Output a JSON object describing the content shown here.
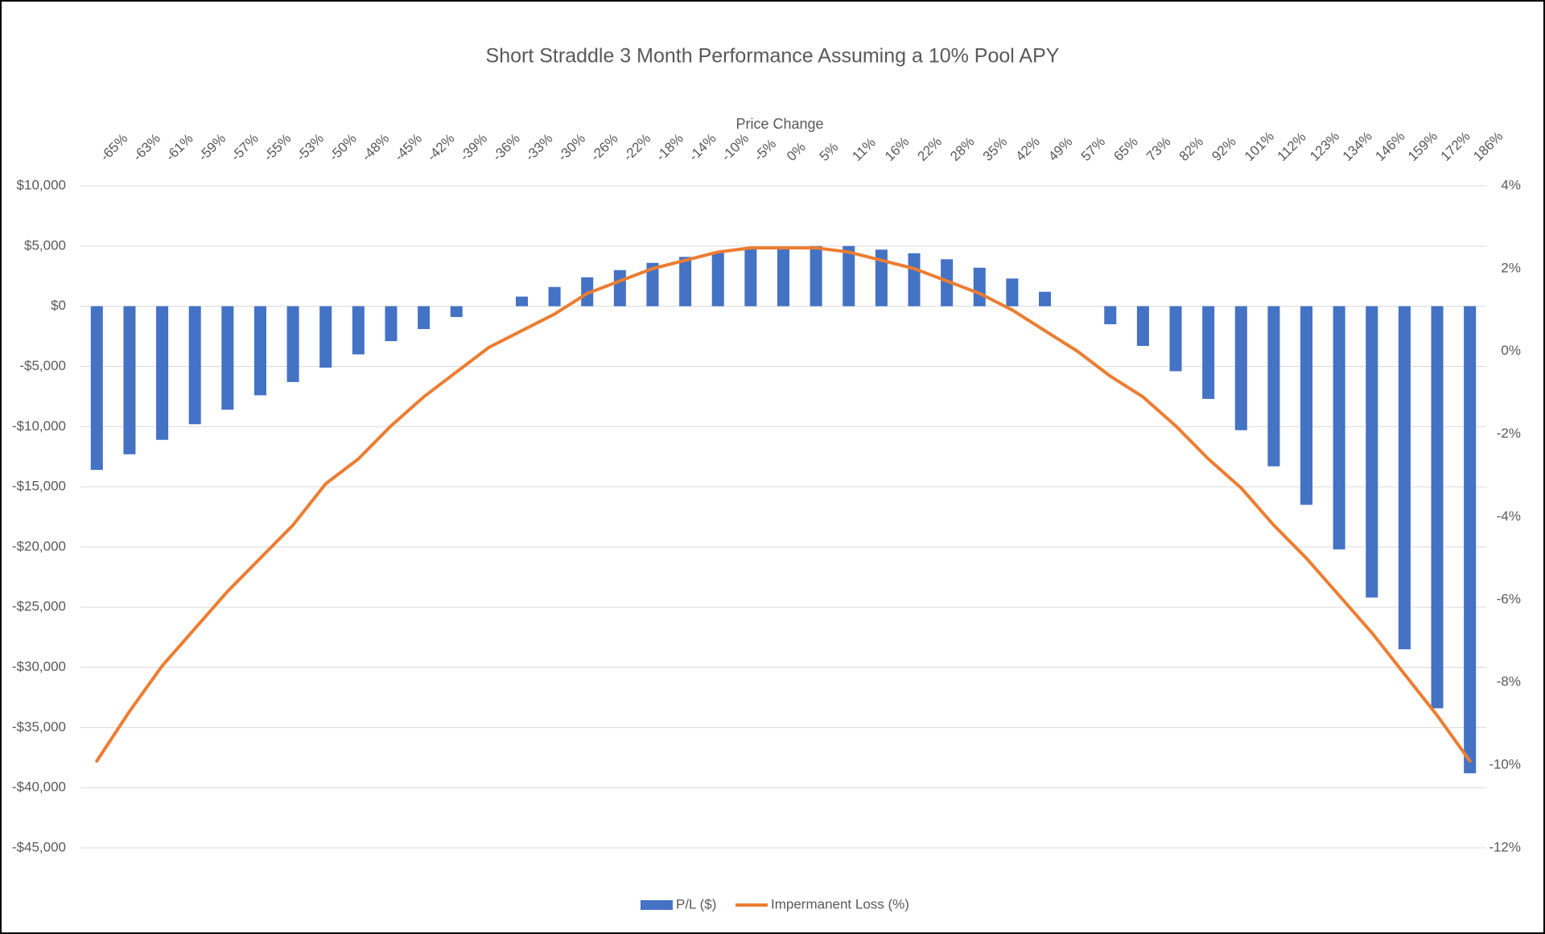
{
  "chart_data": {
    "type": "bar",
    "title": "Short Straddle 3 Month Performance Assuming a 10% Pool APY",
    "x_label": "Price Change",
    "categories": [
      "-65%",
      "-63%",
      "-61%",
      "-59%",
      "-57%",
      "-55%",
      "-53%",
      "-50%",
      "-48%",
      "-45%",
      "-42%",
      "-39%",
      "-36%",
      "-33%",
      "-30%",
      "-26%",
      "-22%",
      "-18%",
      "-14%",
      "-10%",
      "-5%",
      "0%",
      "5%",
      "11%",
      "16%",
      "22%",
      "28%",
      "35%",
      "42%",
      "49%",
      "57%",
      "65%",
      "73%",
      "82%",
      "92%",
      "101%",
      "112%",
      "123%",
      "134%",
      "146%",
      "159%",
      "172%",
      "186%"
    ],
    "series": [
      {
        "name": "P/L ($)",
        "type": "bar",
        "color": "#4472c4",
        "values": [
          -13600,
          -12300,
          -11100,
          -9800,
          -8600,
          -7400,
          -6300,
          -5100,
          -4000,
          -2900,
          -1900,
          -900,
          0,
          800,
          1600,
          2400,
          3000,
          3600,
          4100,
          4500,
          4800,
          4900,
          5000,
          5000,
          4700,
          4400,
          3900,
          3200,
          2300,
          1200,
          0,
          -1500,
          -3300,
          -5400,
          -7700,
          -10300,
          -13300,
          -16500,
          -20200,
          -24200,
          -28500,
          -33400,
          -38800
        ]
      },
      {
        "name": "Impermanent Loss (%)",
        "type": "line",
        "axis": "y2",
        "color": "#ed7d31",
        "values": [
          -9.9,
          -8.7,
          -7.6,
          -6.7,
          -5.8,
          -5.0,
          -4.2,
          -3.2,
          -2.6,
          -1.8,
          -1.1,
          -0.5,
          0.1,
          0.5,
          0.9,
          1.4,
          1.7,
          2.0,
          2.2,
          2.4,
          2.5,
          2.5,
          2.5,
          2.4,
          2.2,
          2.0,
          1.7,
          1.4,
          1.0,
          0.5,
          0.0,
          -0.6,
          -1.1,
          -1.8,
          -2.6,
          -3.3,
          -4.2,
          -5.0,
          -5.9,
          -6.8,
          -7.8,
          -8.8,
          -9.9
        ]
      }
    ],
    "ylim": [
      -45000,
      10000
    ],
    "yticks": [
      {
        "value": 10000,
        "label": "$10,000"
      },
      {
        "value": 5000,
        "label": "$5,000"
      },
      {
        "value": 0,
        "label": "$0"
      },
      {
        "value": -5000,
        "label": "-$5,000"
      },
      {
        "value": -10000,
        "label": "-$10,000"
      },
      {
        "value": -15000,
        "label": "-$15,000"
      },
      {
        "value": -20000,
        "label": "-$20,000"
      },
      {
        "value": -25000,
        "label": "-$25,000"
      },
      {
        "value": -30000,
        "label": "-$30,000"
      },
      {
        "value": -35000,
        "label": "-$35,000"
      },
      {
        "value": -40000,
        "label": "-$40,000"
      },
      {
        "value": -45000,
        "label": "-$45,000"
      }
    ],
    "y2lim": [
      -12,
      4
    ],
    "y2ticks": [
      {
        "value": 4,
        "label": "4%"
      },
      {
        "value": 2,
        "label": "2%"
      },
      {
        "value": 0,
        "label": "0%"
      },
      {
        "value": -2,
        "label": "-2%"
      },
      {
        "value": -4,
        "label": "-4%"
      },
      {
        "value": -6,
        "label": "-6%"
      },
      {
        "value": -8,
        "label": "-8%"
      },
      {
        "value": -10,
        "label": "-10%"
      },
      {
        "value": -12,
        "label": "-12%"
      }
    ],
    "grid": true,
    "legend": "bottom"
  }
}
